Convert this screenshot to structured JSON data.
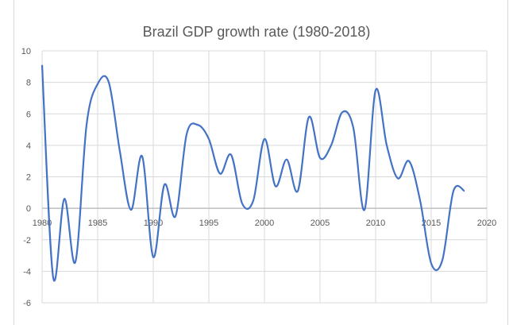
{
  "chart_data": {
    "type": "line",
    "title": "Brazil GDP growth rate (1980-2018)",
    "xlabel": "",
    "ylabel": "",
    "xlim": [
      1980,
      2020
    ],
    "ylim": [
      -6,
      10
    ],
    "xticks": [
      1980,
      1985,
      1990,
      1995,
      2000,
      2005,
      2010,
      2015,
      2020
    ],
    "yticks": [
      -6,
      -4,
      -2,
      0,
      2,
      4,
      6,
      8,
      10
    ],
    "grid": true,
    "smoothed": true,
    "line_color": "#4472C4",
    "x": [
      1980,
      1981,
      1982,
      1983,
      1984,
      1985,
      1986,
      1987,
      1988,
      1989,
      1990,
      1991,
      1992,
      1993,
      1994,
      1995,
      1996,
      1997,
      1998,
      1999,
      2000,
      2001,
      2002,
      2003,
      2004,
      2005,
      2006,
      2007,
      2008,
      2009,
      2010,
      2011,
      2012,
      2013,
      2014,
      2015,
      2016,
      2017,
      2018
    ],
    "values": [
      9.1,
      -4.4,
      0.6,
      -3.4,
      5.3,
      7.9,
      8.0,
      3.6,
      -0.1,
      3.3,
      -3.1,
      1.5,
      -0.5,
      4.7,
      5.3,
      4.4,
      2.2,
      3.4,
      0.3,
      0.5,
      4.4,
      1.4,
      3.1,
      1.1,
      5.8,
      3.2,
      4.0,
      6.1,
      5.1,
      -0.1,
      7.5,
      4.0,
      1.9,
      3.0,
      0.5,
      -3.5,
      -3.3,
      1.1,
      1.1
    ]
  }
}
